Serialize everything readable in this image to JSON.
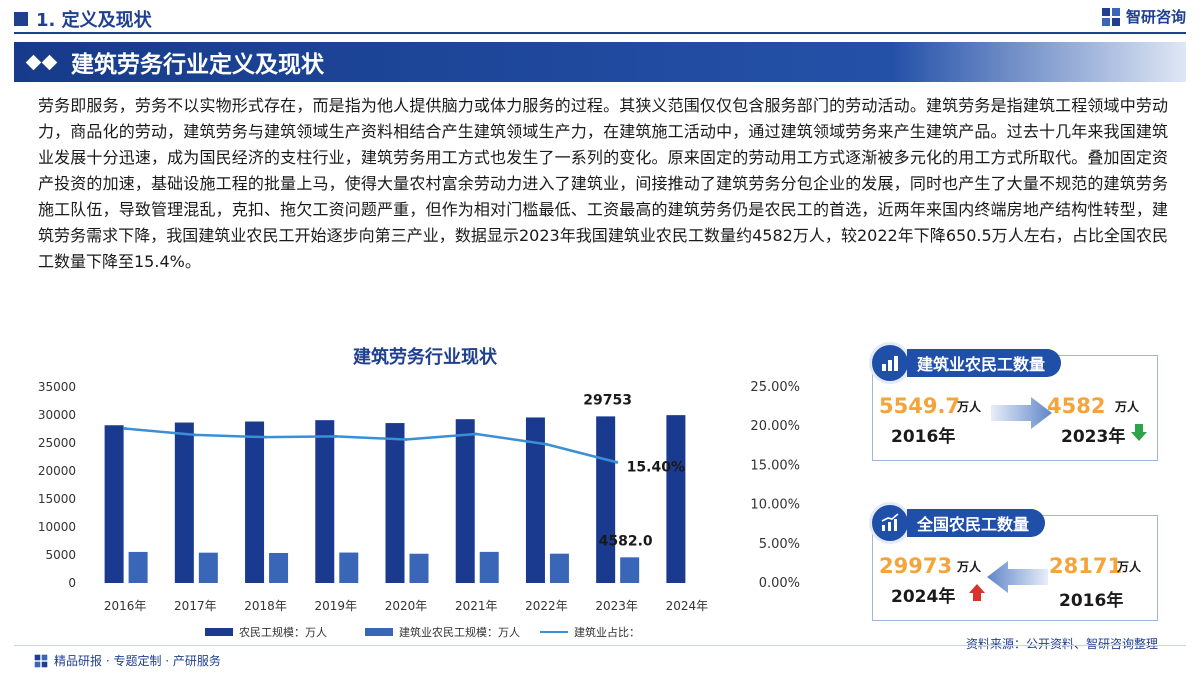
{
  "section": {
    "title": "1. 定义及现状"
  },
  "brand": {
    "name": "智研咨询"
  },
  "banner": {
    "title": "建筑劳务行业定义及现状"
  },
  "paragraph": "劳务即服务，劳务不以实物形式存在，而是指为他人提供脑力或体力服务的过程。其狭义范围仅仅包含服务部门的劳动活动。建筑劳务是指建筑工程领域中劳动力，商品化的劳动，建筑劳务与建筑领域生产资料相结合产生建筑领域生产力，在建筑施工活动中，通过建筑领域劳务来产生建筑产品。过去十几年来我国建筑业发展十分迅速，成为国民经济的支柱行业，建筑劳务用工方式也发生了一系列的变化。原来固定的劳动用工方式逐渐被多元化的用工方式所取代。叠加固定资产投资的加速，基础设施工程的批量上马，使得大量农村富余劳动力进入了建筑业，间接推动了建筑劳务分包企业的发展，同时也产生了大量不规范的建筑劳务施工队伍，导致管理混乱，克扣、拖欠工资问题严重，但作为相对门槛最低、工资最高的建筑劳务仍是农民工的首选，近两年来国内终端房地产结构性转型，建筑劳务需求下降，我国建筑业农民工开始逐步向第三产业，数据显示2023年我国建筑业农民工数量约4582万人，较2022年下降650.5万人左右，占比全国农民工数量下降至15.4%。",
  "chart_data": {
    "type": "bar",
    "title": "建筑劳务行业现状",
    "categories": [
      "2016年",
      "2017年",
      "2018年",
      "2019年",
      "2020年",
      "2021年",
      "2022年",
      "2023年",
      "2024年"
    ],
    "series": [
      {
        "name": "农民工规模：万人",
        "type": "bar",
        "axis": "left",
        "color": "#1a3a8f",
        "values": [
          28171,
          28652,
          28836,
          29077,
          28560,
          29251,
          29562,
          29753,
          29973
        ]
      },
      {
        "name": "建筑业农民工规模：万人",
        "type": "bar",
        "axis": "left",
        "color": "#3a66b8",
        "values": [
          5549.7,
          5415,
          5363,
          5437,
          5226,
          5557,
          5233,
          4582.0,
          null
        ]
      },
      {
        "name": "建筑业占比：",
        "type": "line",
        "axis": "right",
        "color": "#3a8fd6",
        "values": [
          19.7,
          18.9,
          18.6,
          18.7,
          18.3,
          19.0,
          17.7,
          15.4,
          null
        ]
      }
    ],
    "left_axis": {
      "ylim": [
        0,
        35000
      ],
      "ticks": [
        "0",
        "5000",
        "10000",
        "15000",
        "20000",
        "25000",
        "30000",
        "35000"
      ]
    },
    "right_axis": {
      "ylim": [
        0,
        25
      ],
      "ticks": [
        "0.00%",
        "5.00%",
        "10.00%",
        "15.00%",
        "20.00%",
        "25.00%"
      ]
    },
    "annotations": [
      {
        "text": "29753",
        "series": 0,
        "category": "2023年"
      },
      {
        "text": "4582.0",
        "series": 1,
        "category": "2023年"
      },
      {
        "text": "15.40%",
        "series": 2,
        "category": "2023年"
      }
    ],
    "legend_position": "bottom",
    "grid": false
  },
  "card1": {
    "title": "建筑业农民工数量",
    "left": {
      "value": "5549.7",
      "unit": "万人",
      "year": "2016年"
    },
    "right": {
      "value": "4582",
      "unit": "万人",
      "year": "2023年",
      "trend": "down"
    },
    "trend_color": "#2fa34a"
  },
  "card2": {
    "title": "全国农民工数量",
    "left": {
      "value": "29973",
      "unit": "万人",
      "year": "2024年",
      "trend": "up"
    },
    "right": {
      "value": "28171",
      "unit": "万人",
      "year": "2016年"
    },
    "trend_color": "#d9322a"
  },
  "footer": {
    "tagline": "精品研报 · 专题定制 · 产研服务",
    "source": "资料来源：公开资料、智研咨询整理"
  },
  "colors": {
    "brand": "#1f3f8f",
    "highlight": "#f5a43c"
  }
}
